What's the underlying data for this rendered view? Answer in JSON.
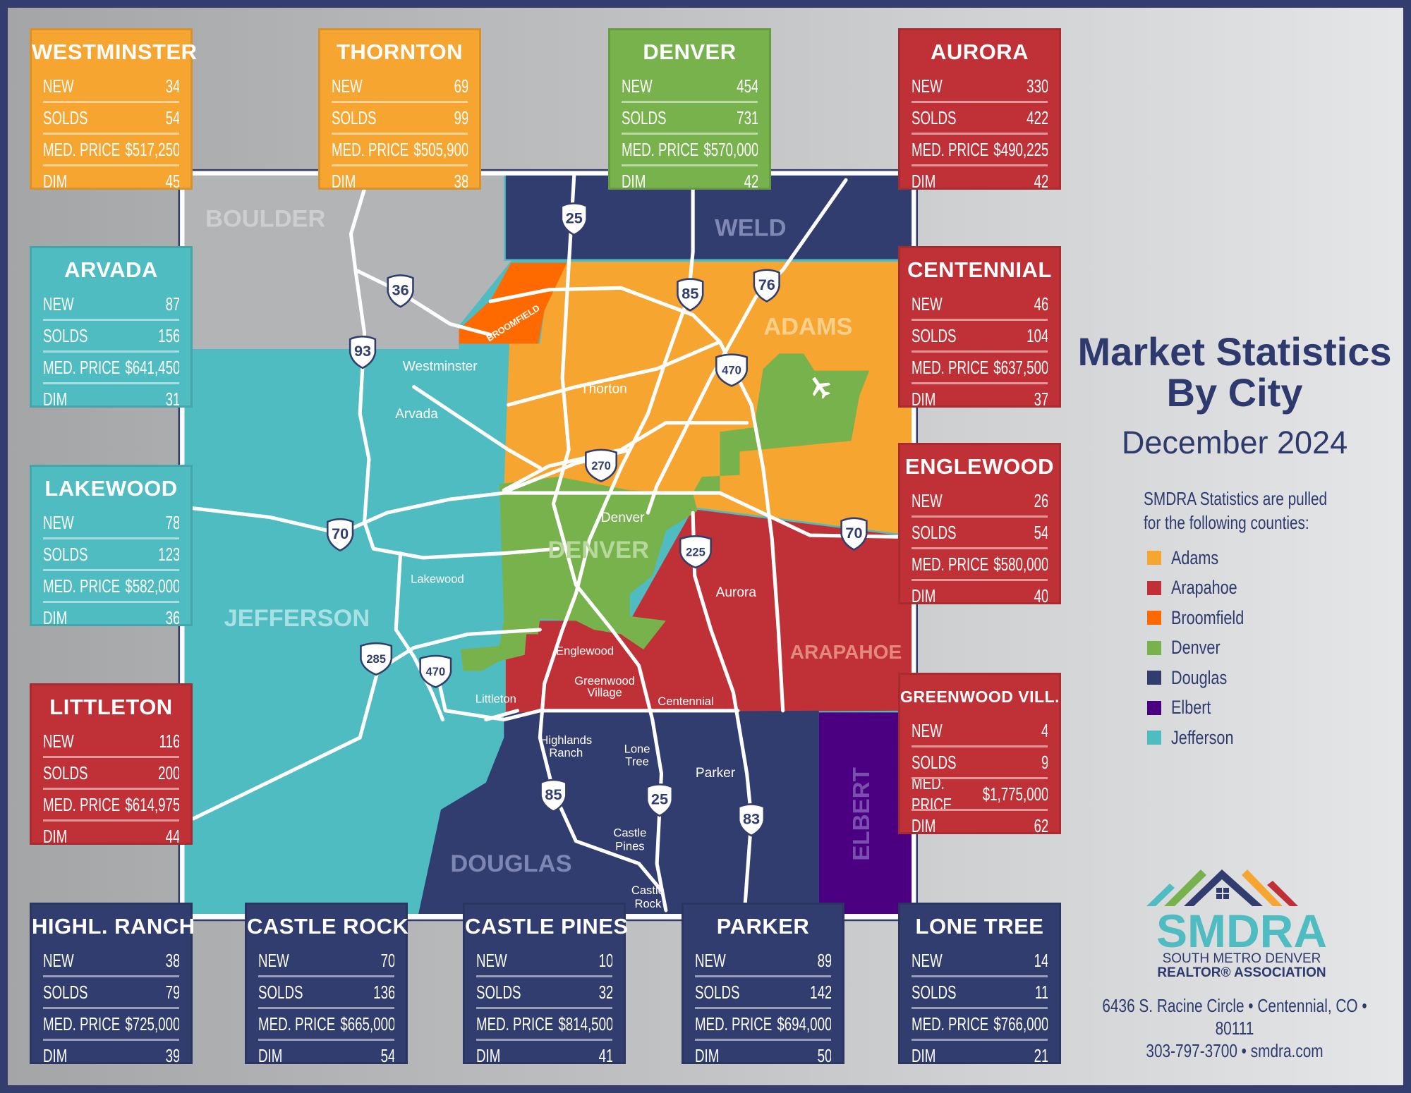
{
  "labels": {
    "new": "NEW",
    "solds": "SOLDS",
    "med_price": "MED. PRICE",
    "dim": "DIM"
  },
  "cities": [
    {
      "name": "WESTMINSTER",
      "theme": "orange",
      "new": "34",
      "solds": "54",
      "med_price": "$517,250",
      "dim": "45"
    },
    {
      "name": "THORNTON",
      "theme": "orange",
      "new": "69",
      "solds": "99",
      "med_price": "$505,900",
      "dim": "38"
    },
    {
      "name": "DENVER",
      "theme": "green",
      "new": "454",
      "solds": "731",
      "med_price": "$570,000",
      "dim": "42"
    },
    {
      "name": "AURORA",
      "theme": "red",
      "new": "330",
      "solds": "422",
      "med_price": "$490,225",
      "dim": "42"
    },
    {
      "name": "ARVADA",
      "theme": "teal",
      "new": "87",
      "solds": "156",
      "med_price": "$641,450",
      "dim": "31"
    },
    {
      "name": "LAKEWOOD",
      "theme": "teal",
      "new": "78",
      "solds": "123",
      "med_price": "$582,000",
      "dim": "36"
    },
    {
      "name": "LITTLETON",
      "theme": "red",
      "new": "116",
      "solds": "200",
      "med_price": "$614,975",
      "dim": "44"
    },
    {
      "name": "CENTENNIAL",
      "theme": "red",
      "new": "46",
      "solds": "104",
      "med_price": "$637,500",
      "dim": "37"
    },
    {
      "name": "ENGLEWOOD",
      "theme": "red",
      "new": "26",
      "solds": "54",
      "med_price": "$580,000",
      "dim": "40"
    },
    {
      "name": "GREENWOOD VILL.",
      "theme": "red",
      "new": "4",
      "solds": "9",
      "med_price": "$1,775,000",
      "dim": "62"
    },
    {
      "name": "HIGHL. RANCH",
      "theme": "navy",
      "new": "38",
      "solds": "79",
      "med_price": "$725,000",
      "dim": "39"
    },
    {
      "name": "CASTLE ROCK",
      "theme": "navy",
      "new": "70",
      "solds": "136",
      "med_price": "$665,000",
      "dim": "54"
    },
    {
      "name": "CASTLE PINES",
      "theme": "navy",
      "new": "10",
      "solds": "32",
      "med_price": "$814,500",
      "dim": "41"
    },
    {
      "name": "PARKER",
      "theme": "navy",
      "new": "89",
      "solds": "142",
      "med_price": "$694,000",
      "dim": "50"
    },
    {
      "name": "LONE TREE",
      "theme": "navy",
      "new": "14",
      "solds": "11",
      "med_price": "$766,000",
      "dim": "21"
    }
  ],
  "colors": {
    "orange": "#f6a531",
    "green": "#77b24c",
    "red": "#c03137",
    "teal": "#4fbcc1",
    "navy": "#323d6f",
    "broomfield": "#ff6a00",
    "elbert": "#4b0082",
    "boulder": "#b3b4b6",
    "title": "#2e3a6e"
  },
  "map": {
    "counties": {
      "boulder": "BOULDER",
      "weld": "WELD",
      "adams": "ADAMS",
      "denver": "DENVER",
      "jefferson": "JEFFERSON",
      "arapahoe": "ARAPAHOE",
      "douglas": "DOUGLAS",
      "elbert": "ELBERT",
      "broomfield": "BROOMFIELD"
    },
    "cities": {
      "westminster": "Westminster",
      "thornton": "Thorton",
      "arvada": "Arvada",
      "denver": "Denver",
      "aurora": "Aurora",
      "lakewood": "Lakewood",
      "englewood": "Englewood",
      "greenwood1": "Greenwood",
      "greenwood2": "Village",
      "centennial": "Centennial",
      "littleton": "Littleton",
      "highlands1": "Highlands",
      "highlands2": "Ranch",
      "lonetree1": "Lone",
      "lonetree2": "Tree",
      "parker": "Parker",
      "castlepines1": "Castle",
      "castlepines2": "Pines",
      "castlerock1": "Castle",
      "castlerock2": "Rock"
    },
    "shields": [
      "25",
      "36",
      "93",
      "85",
      "76",
      "470",
      "270",
      "70",
      "225",
      "70",
      "285",
      "470",
      "85",
      "25",
      "83"
    ],
    "airport_icon": "airplane-icon"
  },
  "title": {
    "line1": "Market Statistics",
    "line2": "By City",
    "date": "December 2024"
  },
  "note": {
    "line1": "SMDRA Statistics are pulled",
    "line2": "for the following counties:"
  },
  "legend": [
    {
      "label": "Adams",
      "color": "#f6a531"
    },
    {
      "label": "Arapahoe",
      "color": "#c03137"
    },
    {
      "label": "Broomfield",
      "color": "#ff6a00"
    },
    {
      "label": "Denver",
      "color": "#77b24c"
    },
    {
      "label": "Douglas",
      "color": "#323d6f"
    },
    {
      "label": "Elbert",
      "color": "#4b0082"
    },
    {
      "label": "Jefferson",
      "color": "#4fbcc1"
    }
  ],
  "logo": {
    "wordmark": "SMDRA",
    "line1": "SOUTH METRO DENVER",
    "line2": "REALTOR® ASSOCIATION"
  },
  "address": {
    "line1": "6436 S. Racine Circle • Centennial, CO • 80111",
    "line2": "303-797-3700 • smdra.com"
  }
}
